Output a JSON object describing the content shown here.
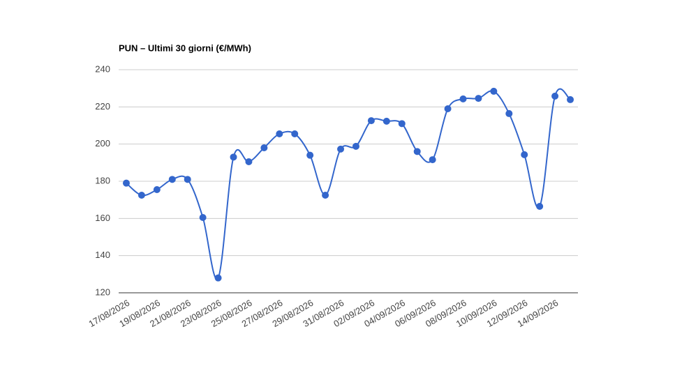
{
  "chart_data": {
    "type": "line",
    "title": "PUN – Ultimi 30 giorni (€/MWh)",
    "categories": [
      "17/08/2026",
      null,
      "19/08/2026",
      null,
      "21/08/2026",
      null,
      "23/08/2026",
      null,
      "25/08/2026",
      null,
      "27/08/2026",
      null,
      "29/08/2026",
      null,
      "31/08/2026",
      null,
      "02/09/2026",
      null,
      "04/09/2026",
      null,
      "06/09/2026",
      null,
      "08/09/2026",
      null,
      "10/09/2026",
      null,
      "12/09/2026",
      null,
      "14/09/2026",
      null
    ],
    "series": [
      {
        "name": "PUN",
        "color": "#3366cc",
        "values": [
          179,
          172.5,
          175.5,
          181,
          181,
          160.5,
          128,
          193,
          190.5,
          198,
          205.5,
          205.5,
          194,
          172.5,
          197.3,
          198.8,
          212.6,
          212.3,
          211,
          196,
          191.6,
          219,
          224.3,
          224.6,
          228.4,
          216.4,
          194.3,
          166.5,
          225.8,
          223.9
        ]
      }
    ],
    "ylim": [
      120,
      240
    ],
    "yticks": [
      120,
      140,
      160,
      180,
      200,
      220,
      240
    ],
    "grid": true,
    "smooth": true
  }
}
